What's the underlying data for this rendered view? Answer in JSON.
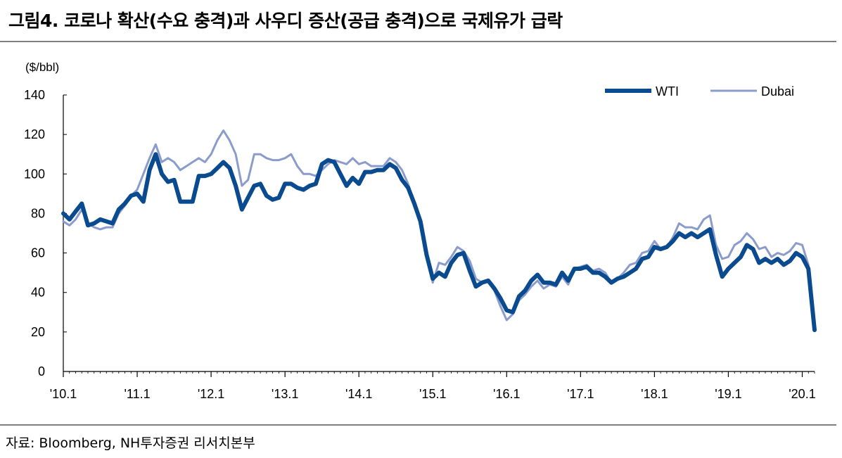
{
  "title": "그림4. 코로나 확산(수요 충격)과 사우디 증산(공급 충격)으로 국제유가 급락",
  "source": "자료: Bloomberg, NH투자증권 리서치본부",
  "colors": {
    "wti": "#0a4a8f",
    "dubai": "#8a9ccc",
    "axis": "#000000",
    "rule": "#7f7f7f"
  },
  "chart_data": {
    "type": "line",
    "ylabel": "($/bbl)",
    "ylim": [
      0,
      140
    ],
    "yticks": [
      "140",
      "120",
      "100",
      "80",
      "60",
      "40",
      "20",
      "0"
    ],
    "xticks": [
      "'10.1",
      "'11.1",
      "'12.1",
      "'13.1",
      "'14.1",
      "'15.1",
      "'16.1",
      "'17.1",
      "'18.1",
      "'19.1",
      "'20.1"
    ],
    "xlim": [
      "2010-01",
      "2020-03"
    ],
    "legend": "top-right",
    "grid": false,
    "x": [
      "2010-01",
      "2010-02",
      "2010-03",
      "2010-04",
      "2010-05",
      "2010-06",
      "2010-07",
      "2010-08",
      "2010-09",
      "2010-10",
      "2010-11",
      "2010-12",
      "2011-01",
      "2011-02",
      "2011-03",
      "2011-04",
      "2011-05",
      "2011-06",
      "2011-07",
      "2011-08",
      "2011-09",
      "2011-10",
      "2011-11",
      "2011-12",
      "2012-01",
      "2012-02",
      "2012-03",
      "2012-04",
      "2012-05",
      "2012-06",
      "2012-07",
      "2012-08",
      "2012-09",
      "2012-10",
      "2012-11",
      "2012-12",
      "2013-01",
      "2013-02",
      "2013-03",
      "2013-04",
      "2013-05",
      "2013-06",
      "2013-07",
      "2013-08",
      "2013-09",
      "2013-10",
      "2013-11",
      "2013-12",
      "2014-01",
      "2014-02",
      "2014-03",
      "2014-04",
      "2014-05",
      "2014-06",
      "2014-07",
      "2014-08",
      "2014-09",
      "2014-10",
      "2014-11",
      "2014-12",
      "2015-01",
      "2015-02",
      "2015-03",
      "2015-04",
      "2015-05",
      "2015-06",
      "2015-07",
      "2015-08",
      "2015-09",
      "2015-10",
      "2015-11",
      "2015-12",
      "2016-01",
      "2016-02",
      "2016-03",
      "2016-04",
      "2016-05",
      "2016-06",
      "2016-07",
      "2016-08",
      "2016-09",
      "2016-10",
      "2016-11",
      "2016-12",
      "2017-01",
      "2017-02",
      "2017-03",
      "2017-04",
      "2017-05",
      "2017-06",
      "2017-07",
      "2017-08",
      "2017-09",
      "2017-10",
      "2017-11",
      "2017-12",
      "2018-01",
      "2018-02",
      "2018-03",
      "2018-04",
      "2018-05",
      "2018-06",
      "2018-07",
      "2018-08",
      "2018-09",
      "2018-10",
      "2018-11",
      "2018-12",
      "2019-01",
      "2019-02",
      "2019-03",
      "2019-04",
      "2019-05",
      "2019-06",
      "2019-07",
      "2019-08",
      "2019-09",
      "2019-10",
      "2019-11",
      "2019-12",
      "2020-01",
      "2020-02",
      "2020-03"
    ],
    "series": [
      {
        "name": "WTI",
        "values": [
          80,
          77,
          81,
          85,
          74,
          75,
          77,
          76,
          75,
          82,
          85,
          89,
          90,
          86,
          102,
          110,
          100,
          96,
          97,
          86,
          86,
          86,
          99,
          99,
          100,
          103,
          106,
          103,
          94,
          82,
          88,
          94,
          95,
          89,
          87,
          88,
          95,
          95,
          93,
          92,
          94,
          95,
          105,
          107,
          106,
          100,
          94,
          98,
          95,
          101,
          101,
          102,
          102,
          105,
          103,
          97,
          93,
          85,
          76,
          59,
          47,
          50,
          48,
          55,
          59,
          60,
          51,
          43,
          45,
          46,
          42,
          37,
          31,
          30,
          38,
          41,
          46,
          49,
          45,
          45,
          44,
          50,
          46,
          52,
          52,
          53,
          50,
          50,
          48,
          45,
          47,
          48,
          50,
          52,
          57,
          58,
          63,
          62,
          63,
          66,
          70,
          68,
          70,
          68,
          70,
          72,
          59,
          48,
          52,
          55,
          58,
          64,
          62,
          55,
          57,
          55,
          57,
          54,
          56,
          60,
          58,
          52,
          21
        ]
      },
      {
        "name": "Dubai",
        "values": [
          76,
          74,
          77,
          82,
          75,
          73,
          72,
          73,
          73,
          80,
          84,
          89,
          92,
          100,
          108,
          115,
          106,
          108,
          106,
          102,
          104,
          106,
          108,
          106,
          110,
          117,
          122,
          117,
          110,
          94,
          97,
          110,
          110,
          108,
          107,
          107,
          108,
          110,
          104,
          100,
          100,
          99,
          102,
          105,
          107,
          106,
          105,
          108,
          105,
          106,
          104,
          104,
          104,
          108,
          106,
          102,
          95,
          85,
          76,
          59,
          45,
          55,
          54,
          58,
          63,
          61,
          56,
          47,
          45,
          46,
          41,
          33,
          26,
          29,
          36,
          39,
          43,
          46,
          42,
          44,
          43,
          48,
          44,
          52,
          53,
          54,
          51,
          52,
          50,
          45,
          47,
          50,
          54,
          55,
          60,
          61,
          66,
          62,
          63,
          68,
          75,
          73,
          73,
          72,
          77,
          79,
          64,
          57,
          58,
          64,
          66,
          70,
          67,
          62,
          63,
          58,
          60,
          59,
          61,
          65,
          64,
          54,
          24
        ]
      }
    ]
  }
}
